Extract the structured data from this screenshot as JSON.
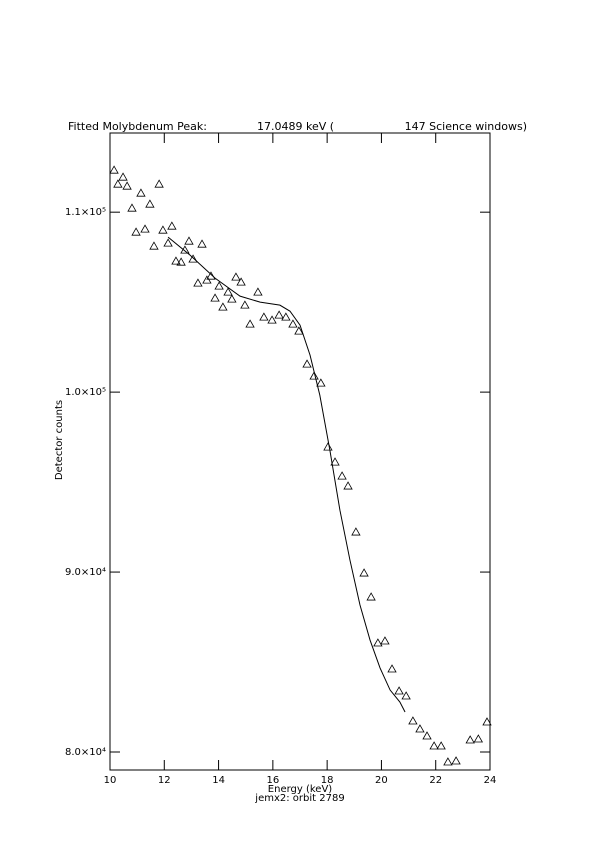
{
  "chart_data": {
    "type": "scatter",
    "title": [
      "Fitted Molybdenum Peak:",
      "17.0489 keV (",
      "147 Science windows)"
    ],
    "x_label": "Energy (keV)",
    "subtitle": "jemx2: orbit 2789",
    "y_label": "Detector counts",
    "xlim": [
      10,
      24
    ],
    "ylim": [
      79000,
      114400
    ],
    "xticks": [
      10,
      12,
      14,
      16,
      18,
      20,
      22,
      24
    ],
    "yticks": [
      {
        "value": 80000,
        "label": "8.0×10⁴"
      },
      {
        "value": 90000,
        "label": "9.0×10⁴"
      },
      {
        "value": 100000,
        "label": "1.0×10⁵"
      },
      {
        "value": 110000,
        "label": "1.1×10⁵"
      }
    ],
    "color": "#000000",
    "series": [
      {
        "mode": "markers",
        "marker": "triangle",
        "x": [
          10.15,
          10.29,
          10.48,
          10.63,
          10.81,
          10.96,
          11.14,
          11.29,
          11.47,
          11.62,
          11.81,
          11.95,
          12.14,
          12.28,
          12.43,
          12.62,
          12.76,
          12.91,
          13.06,
          13.24,
          13.39,
          13.57,
          13.72,
          13.87,
          14.02,
          14.16,
          14.35,
          14.49,
          14.64,
          14.83,
          14.97,
          15.16,
          15.45,
          15.67,
          15.97,
          16.23,
          16.48,
          16.74,
          16.96,
          17.26,
          17.52,
          17.77,
          18.03,
          18.29,
          18.55,
          18.77,
          19.06,
          19.36,
          19.62,
          19.87,
          20.13,
          20.39,
          20.65,
          20.91,
          21.16,
          21.42,
          21.68,
          21.94,
          22.2,
          22.45,
          22.75,
          23.27,
          23.57,
          23.89
        ],
        "values": [
          112333,
          111556,
          111944,
          111444,
          110222,
          108889,
          111056,
          109056,
          110444,
          108111,
          111556,
          109000,
          108278,
          109222,
          107278,
          107222,
          107889,
          108389,
          107389,
          106056,
          108222,
          106222,
          106444,
          105222,
          105889,
          104722,
          105556,
          105167,
          106389,
          106111,
          104833,
          103778,
          105556,
          104167,
          104000,
          104278,
          104167,
          103778,
          103389,
          101556,
          100889,
          100500,
          96944,
          96111,
          95333,
          94778,
          92222,
          89944,
          88611,
          86056,
          86167,
          84611,
          83389,
          83111,
          81722,
          81278,
          80889,
          80333,
          80333,
          79444,
          79500,
          80667,
          80722,
          81667
        ]
      },
      {
        "mode": "line",
        "x": [
          12.14,
          12.95,
          13.87,
          14.79,
          15.53,
          16.26,
          16.63,
          17.0,
          17.37,
          17.73,
          18.1,
          18.47,
          18.84,
          19.21,
          19.58,
          19.95,
          20.32,
          20.68,
          20.87
        ],
        "values": [
          108611,
          107611,
          106333,
          105333,
          105000,
          104833,
          104500,
          103722,
          102056,
          99833,
          96778,
          93444,
          90667,
          88167,
          86222,
          84667,
          83444,
          82778,
          82222
        ]
      }
    ]
  }
}
